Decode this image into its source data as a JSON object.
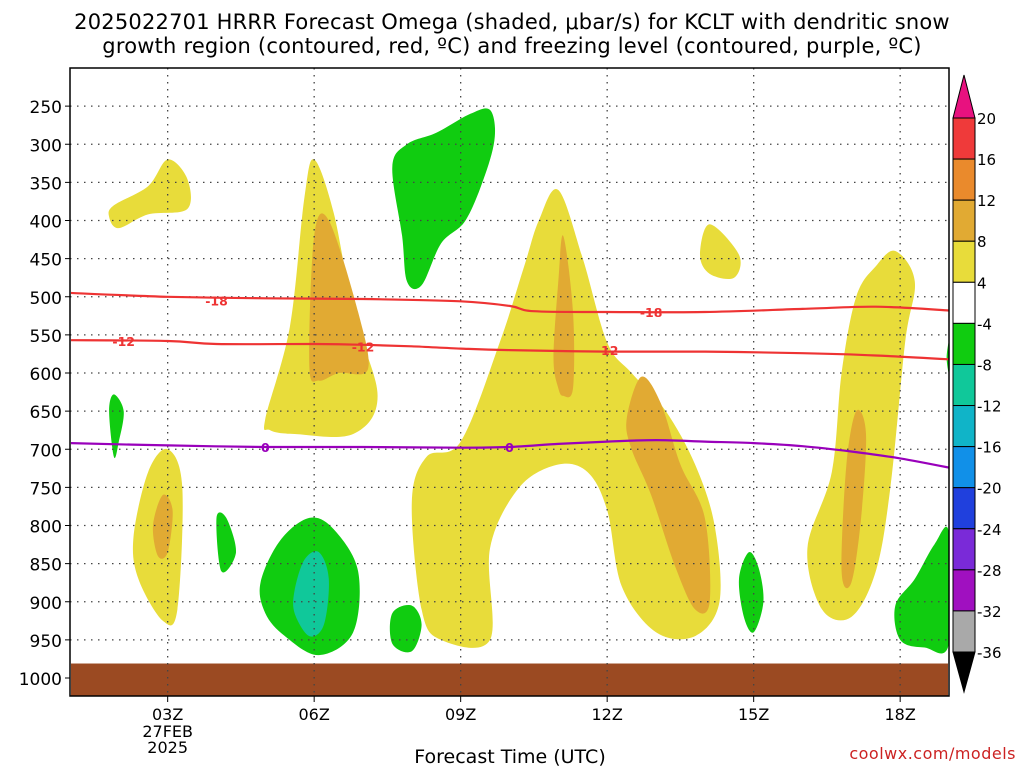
{
  "title_line1": "2025022701 HRRR Forecast Omega (shaded, μbar/s) for KCLT with dendritic snow",
  "title_line2": "growth region (contoured, red, ºC) and freezing level (contoured, purple, ºC)",
  "watermark": "coolwx.com/models",
  "chart_data": {
    "type": "heatmap",
    "title": "2025022701 HRRR Forecast Omega (shaded, μbar/s) for KCLT with dendritic snow growth region (contoured, red, ºC) and freezing level (contoured, purple, ºC)",
    "xlabel": "Forecast Time (UTC)",
    "ylabel": "",
    "x_range_hours": [
      1,
      19
    ],
    "x_ticks": [
      {
        "hour": 3,
        "label": "03Z",
        "sub": [
          "27FEB",
          "2025"
        ]
      },
      {
        "hour": 6,
        "label": "06Z"
      },
      {
        "hour": 9,
        "label": "09Z"
      },
      {
        "hour": 12,
        "label": "12Z"
      },
      {
        "hour": 15,
        "label": "15Z"
      },
      {
        "hour": 18,
        "label": "18Z"
      }
    ],
    "y_axis": "pressure (hPa), reversed",
    "y_range": [
      1000,
      200
    ],
    "y_ticks": [
      250,
      300,
      350,
      400,
      450,
      500,
      550,
      600,
      650,
      700,
      750,
      800,
      850,
      900,
      950,
      1000
    ],
    "grid": true,
    "colorbar": {
      "labels": [
        "20",
        "16",
        "12",
        "8",
        "4",
        "-4",
        "-8",
        "-12",
        "-16",
        "-20",
        "-24",
        "-28",
        "-32",
        "-36"
      ],
      "levels": [
        {
          "range": [
            20,
            24
          ],
          "color": "#e8117f"
        },
        {
          "range": [
            16,
            20
          ],
          "color": "#ef3a3a"
        },
        {
          "range": [
            12,
            16
          ],
          "color": "#ea8a2c"
        },
        {
          "range": [
            8,
            12
          ],
          "color": "#e1aa33"
        },
        {
          "range": [
            4,
            8
          ],
          "color": "#e8dc3a"
        },
        {
          "range": [
            -4,
            4
          ],
          "color": "#ffffff"
        },
        {
          "range": [
            -8,
            -4
          ],
          "color": "#10cc10"
        },
        {
          "range": [
            -12,
            -8
          ],
          "color": "#10c89a"
        },
        {
          "range": [
            -16,
            -12
          ],
          "color": "#10b4c8"
        },
        {
          "range": [
            -20,
            -16
          ],
          "color": "#1190e8"
        },
        {
          "range": [
            -24,
            -20
          ],
          "color": "#2040dd"
        },
        {
          "range": [
            -28,
            -24
          ],
          "color": "#7a2ad8"
        },
        {
          "range": [
            -32,
            -28
          ],
          "color": "#a010c0"
        },
        {
          "range": [
            -36,
            -32
          ],
          "color": "#a9a9a9"
        },
        {
          "range": [
            -40,
            -36
          ],
          "color": "#000000"
        }
      ]
    },
    "omega_regions": [
      {
        "level": "4-8",
        "color": "#e8dc3a",
        "points": [
          [
            1.9,
            380
          ],
          [
            2.6,
            355
          ],
          [
            3,
            320
          ],
          [
            3.4,
            345
          ],
          [
            3.4,
            385
          ],
          [
            2.6,
            392
          ],
          [
            2,
            410
          ],
          [
            1.8,
            395
          ]
        ]
      },
      {
        "level": "4-8",
        "color": "#e8dc3a",
        "points": [
          [
            5,
            660
          ],
          [
            5.5,
            540
          ],
          [
            5.8,
            370
          ],
          [
            6,
            320
          ],
          [
            6.4,
            390
          ],
          [
            6.8,
            520
          ],
          [
            7.3,
            630
          ],
          [
            6.8,
            680
          ],
          [
            5.6,
            680
          ],
          [
            5.1,
            675
          ]
        ]
      },
      {
        "level": "8-12",
        "color": "#e1aa33",
        "points": [
          [
            5.9,
            590
          ],
          [
            6,
            420
          ],
          [
            6.3,
            400
          ],
          [
            6.9,
            520
          ],
          [
            7.1,
            595
          ],
          [
            6.5,
            600
          ],
          [
            6.1,
            610
          ]
        ]
      },
      {
        "level": "4-8",
        "color": "#e8dc3a",
        "points": [
          [
            2.3,
            815
          ],
          [
            2.6,
            730
          ],
          [
            3,
            700
          ],
          [
            3.3,
            750
          ],
          [
            3.2,
            910
          ],
          [
            2.9,
            925
          ],
          [
            2.4,
            870
          ]
        ]
      },
      {
        "level": "8-12",
        "color": "#e1aa33",
        "points": [
          [
            2.7,
            800
          ],
          [
            2.9,
            760
          ],
          [
            3.1,
            780
          ],
          [
            3,
            835
          ],
          [
            2.8,
            840
          ]
        ]
      },
      {
        "level": "4-8",
        "color": "#e8dc3a",
        "points": [
          [
            8,
            770
          ],
          [
            8.3,
            710
          ],
          [
            9,
            690
          ],
          [
            9.8,
            560
          ],
          [
            10.3,
            460
          ],
          [
            10.6,
            400
          ],
          [
            11,
            360
          ],
          [
            11.5,
            450
          ],
          [
            12,
            560
          ],
          [
            12.5,
            600
          ],
          [
            13.2,
            650
          ],
          [
            13.8,
            720
          ],
          [
            14.2,
            800
          ],
          [
            14.3,
            900
          ],
          [
            13.8,
            945
          ],
          [
            13,
            940
          ],
          [
            12.3,
            880
          ],
          [
            12,
            780
          ],
          [
            11.6,
            730
          ],
          [
            11,
            720
          ],
          [
            10.2,
            750
          ],
          [
            9.6,
            830
          ],
          [
            9.6,
            950
          ],
          [
            8.6,
            950
          ],
          [
            8.2,
            910
          ]
        ]
      },
      {
        "level": "8-12",
        "color": "#e1aa33",
        "points": [
          [
            10.9,
            580
          ],
          [
            11,
            480
          ],
          [
            11.1,
            420
          ],
          [
            11.3,
            520
          ],
          [
            11.3,
            620
          ],
          [
            11.1,
            630
          ],
          [
            11,
            620
          ]
        ]
      },
      {
        "level": "8-12",
        "color": "#e1aa33",
        "points": [
          [
            12.4,
            660
          ],
          [
            12.7,
            605
          ],
          [
            13.1,
            640
          ],
          [
            13.5,
            720
          ],
          [
            14,
            790
          ],
          [
            14.1,
            900
          ],
          [
            13.8,
            910
          ],
          [
            13.4,
            855
          ],
          [
            12.9,
            760
          ],
          [
            12.5,
            700
          ]
        ]
      },
      {
        "level": "4-8",
        "color": "#e8dc3a",
        "points": [
          [
            13.9,
            445
          ],
          [
            14.1,
            405
          ],
          [
            14.7,
            445
          ],
          [
            14.6,
            475
          ],
          [
            14.1,
            470
          ]
        ]
      },
      {
        "level": "4-8",
        "color": "#e8dc3a",
        "points": [
          [
            16.1,
            830
          ],
          [
            16.6,
            730
          ],
          [
            16.8,
            600
          ],
          [
            17.1,
            500
          ],
          [
            17.5,
            460
          ],
          [
            17.9,
            440
          ],
          [
            18.3,
            480
          ],
          [
            18.1,
            560
          ],
          [
            17.8,
            750
          ],
          [
            17.5,
            860
          ],
          [
            17,
            920
          ],
          [
            16.4,
            910
          ]
        ]
      },
      {
        "level": "8-12",
        "color": "#e1aa33",
        "points": [
          [
            16.8,
            860
          ],
          [
            16.9,
            720
          ],
          [
            17.1,
            650
          ],
          [
            17.3,
            680
          ],
          [
            17.2,
            790
          ],
          [
            17,
            875
          ]
        ]
      },
      {
        "level": "-8 to -4",
        "color": "#10cc10",
        "points": [
          [
            7.6,
            330
          ],
          [
            7.9,
            300
          ],
          [
            8.5,
            285
          ],
          [
            9.2,
            260
          ],
          [
            9.6,
            255
          ],
          [
            9.7,
            290
          ],
          [
            9.5,
            340
          ],
          [
            9.1,
            400
          ],
          [
            8.6,
            430
          ],
          [
            8.2,
            485
          ],
          [
            7.9,
            480
          ],
          [
            7.8,
            420
          ]
        ]
      },
      {
        "level": "-8 to -4",
        "color": "#10cc10",
        "points": [
          [
            1.8,
            650
          ],
          [
            1.9,
            628
          ],
          [
            2.1,
            650
          ],
          [
            2,
            690
          ],
          [
            1.9,
            710
          ]
        ]
      },
      {
        "level": "-8 to -4",
        "color": "#10cc10",
        "points": [
          [
            4.9,
            875
          ],
          [
            5.3,
            820
          ],
          [
            5.9,
            790
          ],
          [
            6.4,
            805
          ],
          [
            6.9,
            860
          ],
          [
            6.8,
            940
          ],
          [
            6.1,
            970
          ],
          [
            5.4,
            945
          ],
          [
            5,
            915
          ]
        ]
      },
      {
        "level": "-12 to -8",
        "color": "#10c89a",
        "points": [
          [
            5.6,
            885
          ],
          [
            5.8,
            845
          ],
          [
            6.1,
            835
          ],
          [
            6.3,
            870
          ],
          [
            6.2,
            930
          ],
          [
            5.9,
            945
          ],
          [
            5.6,
            915
          ]
        ]
      },
      {
        "level": "-8 to -4",
        "color": "#10cc10",
        "points": [
          [
            4,
            790
          ],
          [
            4.2,
            790
          ],
          [
            4.4,
            835
          ],
          [
            4.1,
            860
          ]
        ]
      },
      {
        "level": "-8 to -4",
        "color": "#10cc10",
        "points": [
          [
            7.6,
            915
          ],
          [
            8,
            905
          ],
          [
            8.2,
            930
          ],
          [
            8,
            965
          ],
          [
            7.6,
            955
          ]
        ]
      },
      {
        "level": "-8 to -4",
        "color": "#10cc10",
        "points": [
          [
            14.7,
            870
          ],
          [
            14.9,
            835
          ],
          [
            15.1,
            855
          ],
          [
            15.2,
            900
          ],
          [
            15,
            940
          ],
          [
            14.8,
            920
          ]
        ]
      },
      {
        "level": "-8 to -4",
        "color": "#10cc10",
        "points": [
          [
            17.9,
            905
          ],
          [
            18.3,
            870
          ],
          [
            18.7,
            825
          ],
          [
            19,
            810
          ],
          [
            19,
            955
          ],
          [
            18.5,
            960
          ],
          [
            18,
            950
          ]
        ]
      },
      {
        "level": "-8 to -4",
        "color": "#10cc10",
        "points": [
          [
            18.95,
            580
          ],
          [
            19,
            560
          ],
          [
            19,
            600
          ]
        ]
      }
    ],
    "contours": [
      {
        "name": "-18",
        "color": "#ee3333",
        "label": "-18",
        "label_at": [
          [
            4,
            505
          ],
          [
            12.9,
            520
          ]
        ],
        "points": [
          [
            1,
            495
          ],
          [
            3,
            500
          ],
          [
            5,
            502
          ],
          [
            7,
            503
          ],
          [
            9,
            506
          ],
          [
            10,
            512
          ],
          [
            10.5,
            519
          ],
          [
            12,
            520
          ],
          [
            14,
            520
          ],
          [
            16,
            516
          ],
          [
            17.5,
            513
          ],
          [
            19,
            518
          ]
        ]
      },
      {
        "name": "-12",
        "color": "#ee3333",
        "label": "-12",
        "label_at": [
          [
            2.1,
            558
          ],
          [
            7,
            565
          ],
          [
            12,
            570
          ]
        ],
        "points": [
          [
            1,
            557
          ],
          [
            3,
            558
          ],
          [
            4,
            562
          ],
          [
            6,
            562
          ],
          [
            7,
            563
          ],
          [
            8,
            565
          ],
          [
            9,
            568
          ],
          [
            10,
            570
          ],
          [
            12,
            572
          ],
          [
            14,
            572
          ],
          [
            16,
            574
          ],
          [
            17.5,
            577
          ],
          [
            19,
            582
          ]
        ]
      },
      {
        "name": "0",
        "color": "#9900bb",
        "label": "0",
        "label_at": [
          [
            5,
            697
          ],
          [
            10,
            697
          ]
        ],
        "points": [
          [
            1,
            692
          ],
          [
            3,
            695
          ],
          [
            5,
            697
          ],
          [
            7,
            697
          ],
          [
            9,
            698
          ],
          [
            10,
            697
          ],
          [
            11,
            693
          ],
          [
            12,
            690
          ],
          [
            13,
            688
          ],
          [
            14,
            690
          ],
          [
            15,
            692
          ],
          [
            16,
            696
          ],
          [
            17,
            703
          ],
          [
            18,
            712
          ],
          [
            19,
            724
          ]
        ]
      }
    ],
    "ground": {
      "pressure_top": 981,
      "color": "#9b4a22"
    }
  }
}
